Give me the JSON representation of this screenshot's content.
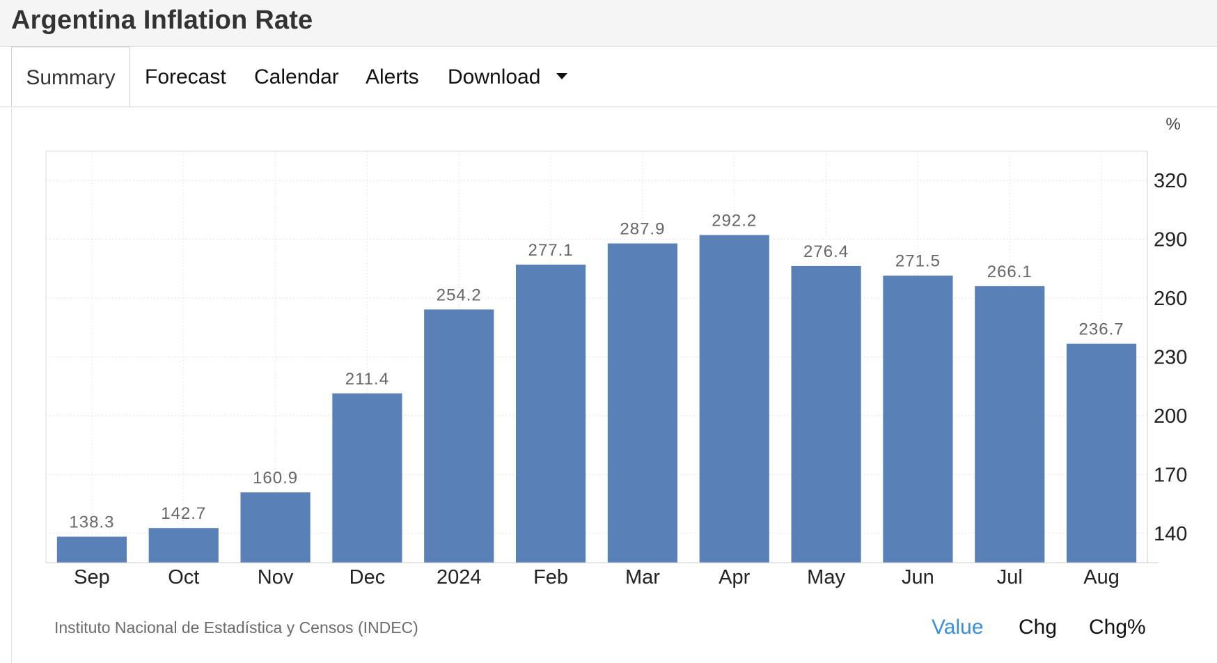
{
  "header": {
    "title": "Argentina Inflation Rate"
  },
  "tabs": [
    {
      "label": "Summary",
      "active": true
    },
    {
      "label": "Forecast"
    },
    {
      "label": "Calendar"
    },
    {
      "label": "Alerts"
    },
    {
      "label": "Download",
      "has_dropdown": true
    }
  ],
  "chart_data": {
    "type": "bar",
    "title": "",
    "unit_label": "%",
    "categories": [
      "Sep",
      "Oct",
      "Nov",
      "Dec",
      "2024",
      "Feb",
      "Mar",
      "Apr",
      "May",
      "Jun",
      "Jul",
      "Aug"
    ],
    "values": [
      138.3,
      142.7,
      160.9,
      211.4,
      254.2,
      277.1,
      287.9,
      292.2,
      276.4,
      271.5,
      266.1,
      236.7
    ],
    "value_labels": [
      "138.3",
      "142.7",
      "160.9",
      "211.4",
      "254.2",
      "277.1",
      "287.9",
      "292.2",
      "276.4",
      "271.5",
      "266.1",
      "236.7"
    ],
    "y_ticks": [
      "140",
      "170",
      "200",
      "230",
      "260",
      "290",
      "320"
    ],
    "ylim": [
      125,
      335
    ],
    "y_axis_side": "right",
    "grid": true,
    "bar_color": "#5a80b8"
  },
  "footer": {
    "source": "Instituto Nacional de Estadística y Censos (INDEC)",
    "toggles": [
      {
        "label": "Value",
        "active": true
      },
      {
        "label": "Chg"
      },
      {
        "label": "Chg%"
      }
    ],
    "active_color": "#3a8fe0"
  }
}
